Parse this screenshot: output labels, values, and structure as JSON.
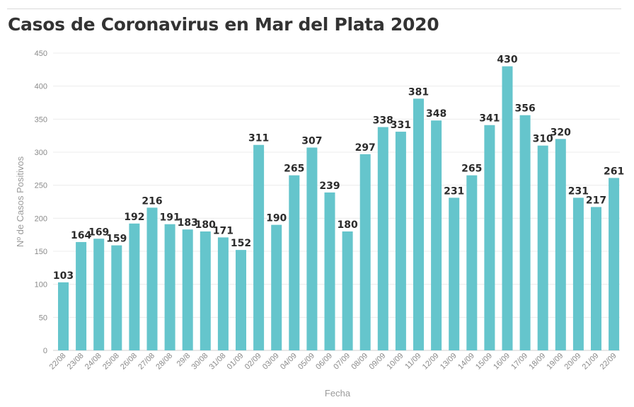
{
  "page": {
    "title": "Casos de Coronavirus en Mar del Plata 2020"
  },
  "chart_data": {
    "type": "bar",
    "title": "Casos de Coronavirus en Mar del Plata 2020",
    "xlabel": "Fecha",
    "ylabel": "Nº de Casos Positivos",
    "ylim": [
      0,
      450
    ],
    "yticks": [
      0,
      50,
      100,
      150,
      200,
      250,
      300,
      350,
      400,
      450
    ],
    "grid": true,
    "bar_color": "#65c5cc",
    "categories": [
      "22/08",
      "23/08",
      "24/08",
      "25/08",
      "26/08",
      "27/08",
      "28/08",
      "29/8",
      "30/08",
      "31/08",
      "01/09",
      "02/09",
      "03/09",
      "04/09",
      "05/09",
      "06/09",
      "07/09",
      "08/09",
      "09/09",
      "10/09",
      "11/09",
      "12/09",
      "13/09",
      "14/09",
      "15/09",
      "16/09",
      "17/09",
      "18/09",
      "19/09",
      "20/09",
      "21/09",
      "22/09"
    ],
    "values": [
      103,
      164,
      169,
      159,
      192,
      216,
      191,
      183,
      180,
      171,
      152,
      311,
      190,
      265,
      307,
      239,
      180,
      297,
      338,
      331,
      381,
      348,
      231,
      265,
      341,
      430,
      356,
      310,
      320,
      231,
      217,
      261
    ]
  }
}
